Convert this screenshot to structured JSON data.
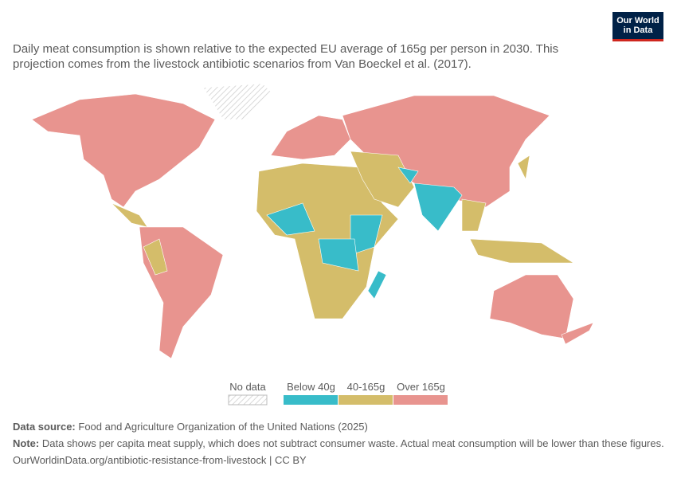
{
  "logo": {
    "line1": "Our World",
    "line2": "in Data"
  },
  "subtitle_lines": [
    "Daily meat consumption is shown relative to the expected EU average of 165g per person in 2030. This",
    "projection comes from the livestock antibiotic scenarios from Van Boeckel et al. (2017)."
  ],
  "legend": {
    "no_data": "No data",
    "items": [
      {
        "label": "Below 40g",
        "color": "#38bcc9"
      },
      {
        "label": "40-165g",
        "color": "#d4bd6a"
      },
      {
        "label": "Over 165g",
        "color": "#e8948f"
      }
    ]
  },
  "footer": {
    "source_label": "Data source:",
    "source": "Food and Agriculture Organization of the United Nations (2025)",
    "note_label": "Note:",
    "note": "Data shows per capita meat supply, which does not subtract consumer waste. Actual meat consumption will be lower than these figures.",
    "url": "OurWorldinData.org/antibiotic-resistance-from-livestock | CC BY"
  }
}
